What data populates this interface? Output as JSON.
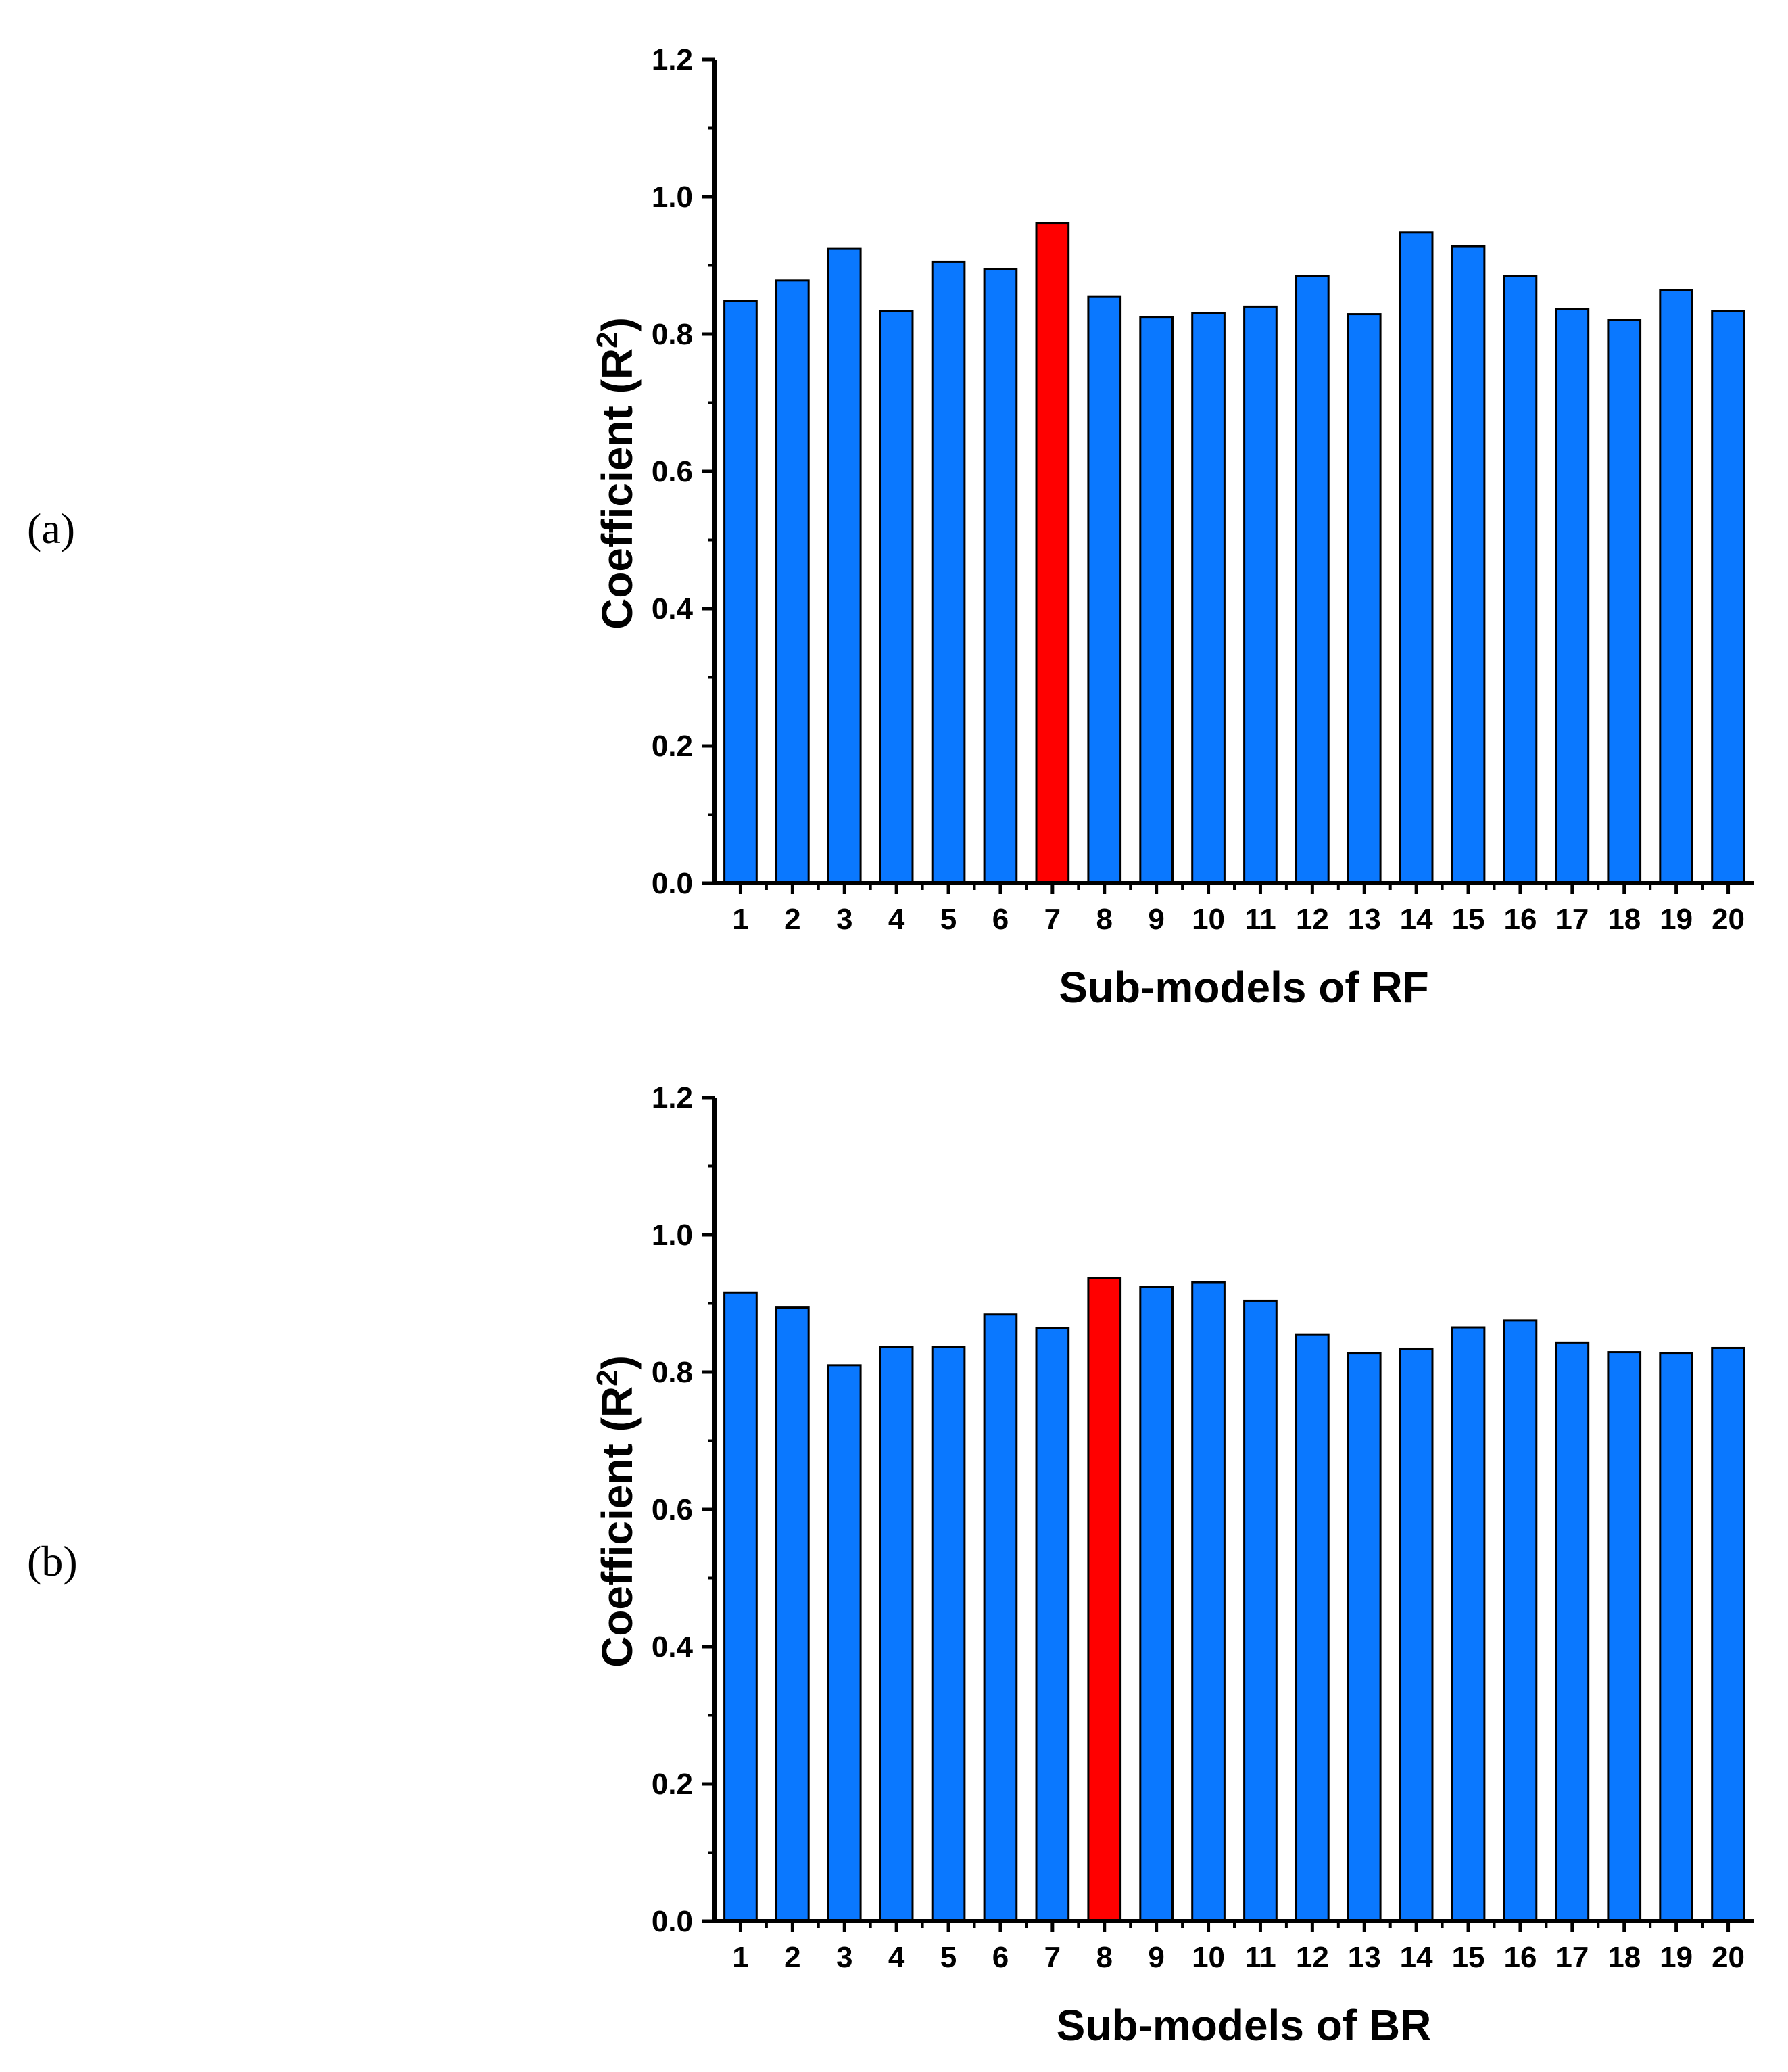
{
  "panels": [
    {
      "label": "(a)"
    },
    {
      "label": "(b)"
    }
  ],
  "chart_data": [
    {
      "type": "bar",
      "categories": [
        "1",
        "2",
        "3",
        "4",
        "5",
        "6",
        "7",
        "8",
        "9",
        "10",
        "11",
        "12",
        "13",
        "14",
        "15",
        "16",
        "17",
        "18",
        "19",
        "20"
      ],
      "values": [
        0.848,
        0.878,
        0.925,
        0.833,
        0.905,
        0.895,
        0.962,
        0.855,
        0.825,
        0.831,
        0.84,
        0.885,
        0.829,
        0.948,
        0.928,
        0.885,
        0.836,
        0.821,
        0.864,
        0.833
      ],
      "highlight_index": 6,
      "bar_color": "#0a78ff",
      "highlight_color": "#ff0000",
      "xlabel": "Sub-models of RF",
      "ylabel_main": "Coefficient (R",
      "ylabel_sup": "2",
      "ylabel_close": ")",
      "ylim": [
        0,
        1.2
      ],
      "yticks": [
        "0.0",
        "0.2",
        "0.4",
        "0.6",
        "0.8",
        "1.0",
        "1.2"
      ]
    },
    {
      "type": "bar",
      "categories": [
        "1",
        "2",
        "3",
        "4",
        "5",
        "6",
        "7",
        "8",
        "9",
        "10",
        "11",
        "12",
        "13",
        "14",
        "15",
        "16",
        "17",
        "18",
        "19",
        "20"
      ],
      "values": [
        0.916,
        0.894,
        0.81,
        0.836,
        0.836,
        0.884,
        0.864,
        0.937,
        0.924,
        0.931,
        0.904,
        0.855,
        0.828,
        0.834,
        0.865,
        0.875,
        0.843,
        0.829,
        0.828,
        0.835
      ],
      "highlight_index": 7,
      "bar_color": "#0a78ff",
      "highlight_color": "#ff0000",
      "xlabel": "Sub-models of BR",
      "ylabel_main": "Coefficient (R",
      "ylabel_sup": "2",
      "ylabel_close": ")",
      "ylim": [
        0,
        1.2
      ],
      "yticks": [
        "0.0",
        "0.2",
        "0.4",
        "0.6",
        "0.8",
        "1.0",
        "1.2"
      ]
    }
  ]
}
